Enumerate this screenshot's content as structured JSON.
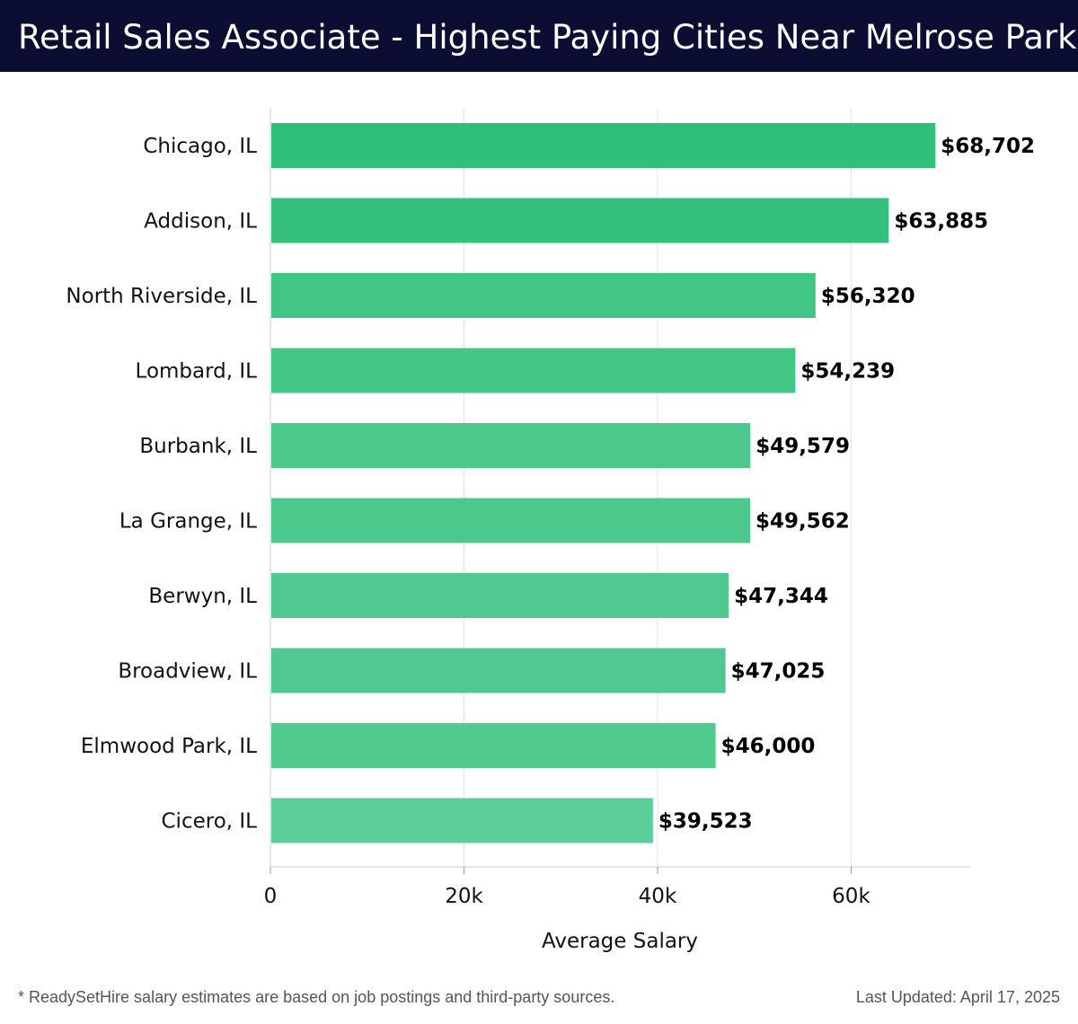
{
  "header": {
    "title": "Retail Sales Associate - Highest Paying Cities Near Melrose Park, IL"
  },
  "chart_data": {
    "type": "bar",
    "orientation": "horizontal",
    "categories": [
      "Chicago, IL",
      "Addison, IL",
      "North Riverside, IL",
      "Lombard, IL",
      "Burbank, IL",
      "La Grange, IL",
      "Berwyn, IL",
      "Broadview, IL",
      "Elmwood Park, IL",
      "Cicero, IL"
    ],
    "values": [
      68702,
      63885,
      56320,
      54239,
      49579,
      49562,
      47344,
      47025,
      46000,
      39523
    ],
    "value_labels": [
      "$68,702",
      "$63,885",
      "$56,320",
      "$54,239",
      "$49,579",
      "$49,562",
      "$47,344",
      "$47,025",
      "$46,000",
      "$39,523"
    ],
    "xlabel": "Average Salary",
    "xlim": [
      0,
      72300
    ],
    "x_ticks": [
      0,
      20000,
      40000,
      60000
    ],
    "x_tick_labels": [
      "0",
      "20k",
      "40k",
      "60k"
    ],
    "grid": true,
    "bar_color_max": "#2ebf78",
    "bar_color_min": "#5bcd97"
  },
  "footer": {
    "footnote": "* ReadySetHire salary estimates are based on job postings and third-party sources.",
    "updated": "Last Updated: April 17, 2025"
  }
}
